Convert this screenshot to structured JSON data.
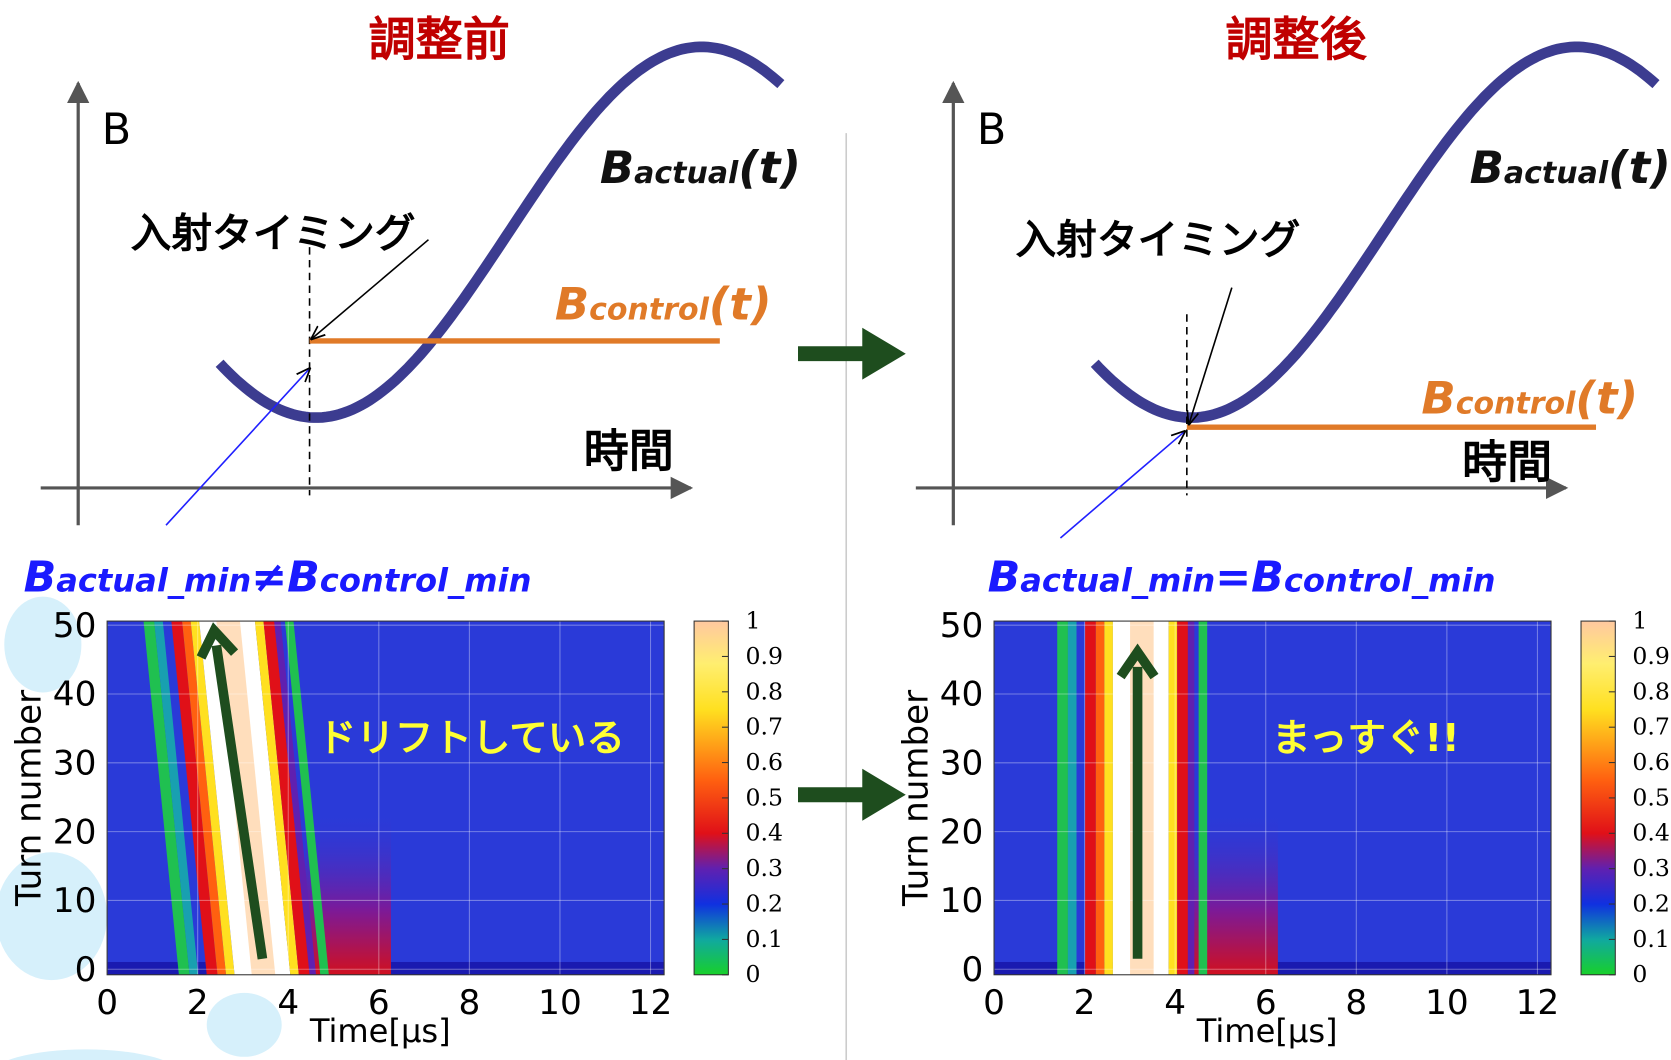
{
  "panels": [
    {
      "title": "調整前",
      "y_axis_label": "B",
      "x_axis_label": "時間",
      "actual_label": {
        "main": "B",
        "sub": "actual",
        "suffix": "(t)"
      },
      "control_label": {
        "main": "B",
        "sub": "control",
        "suffix": "(t)"
      },
      "timing_label": "入射タイミング",
      "relation": {
        "main1": "B",
        "sub1": "actual_min",
        "op": "≠",
        "main2": "B",
        "sub2": "control_min"
      },
      "annotation": "ドリフトしている",
      "heatmap": {
        "ylabel": "Turn number",
        "xlabel": "Time[μs]",
        "xlim": [
          0,
          12.3
        ],
        "xticks": [
          0,
          2,
          4,
          6,
          8,
          10,
          12
        ],
        "ylim": [
          -0.8,
          50.6
        ],
        "yticks": [
          0,
          10,
          20,
          30,
          40,
          50
        ],
        "colorbar": {
          "lim": [
            0,
            1
          ],
          "ticks": [
            0,
            0.1,
            0.2,
            0.3,
            0.4,
            0.5,
            0.6,
            0.7,
            0.8,
            0.9,
            1
          ]
        }
      }
    },
    {
      "title": "調整後",
      "y_axis_label": "B",
      "x_axis_label": "時間",
      "actual_label": {
        "main": "B",
        "sub": "actual",
        "suffix": "(t)"
      },
      "control_label": {
        "main": "B",
        "sub": "control",
        "suffix": "(t)"
      },
      "timing_label": "入射タイミング",
      "relation": {
        "main1": "B",
        "sub1": "actual_min",
        "op": "=",
        "main2": "B",
        "sub2": "control_min"
      },
      "annotation": "まっすぐ!!",
      "heatmap": {
        "ylabel": "Turn number",
        "xlabel": "Time[μs]",
        "xlim": [
          0,
          12.3
        ],
        "xticks": [
          0,
          2,
          4,
          6,
          8,
          10,
          12
        ],
        "ylim": [
          -0.8,
          50.6
        ],
        "yticks": [
          0,
          10,
          20,
          30,
          40,
          50
        ],
        "colorbar": {
          "lim": [
            0,
            1
          ],
          "ticks": [
            0,
            0.1,
            0.2,
            0.3,
            0.4,
            0.5,
            0.6,
            0.7,
            0.8,
            0.9,
            1
          ]
        }
      }
    }
  ]
}
